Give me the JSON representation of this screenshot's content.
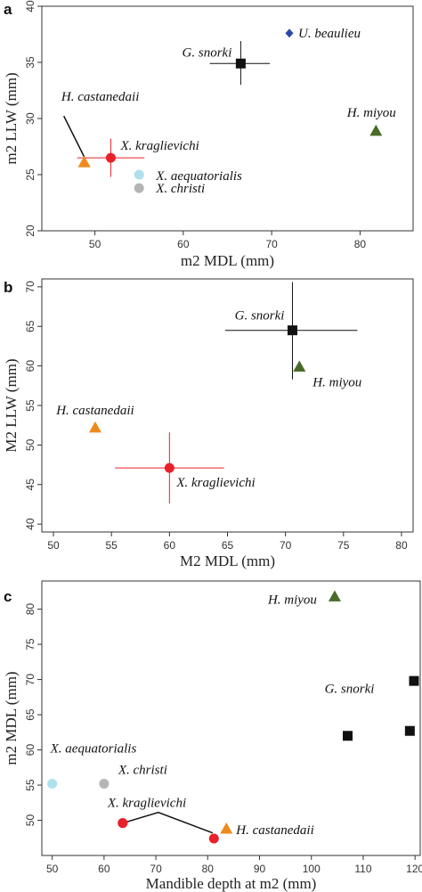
{
  "chart_data": [
    {
      "type": "scatter",
      "panel_label": "a",
      "xlabel": "m2 MDL (mm)",
      "ylabel": "m2 LLW (mm)",
      "xlim": [
        44,
        86
      ],
      "ylim": [
        20,
        40
      ],
      "xticks": [
        50,
        60,
        70,
        80
      ],
      "yticks": [
        20,
        25,
        30,
        35,
        40
      ],
      "points": [
        {
          "label": "U. beaulieu",
          "x": 72.0,
          "y": 37.6,
          "marker": "diamond",
          "color": "#2b47a8"
        },
        {
          "label": "G. snorki",
          "x": 66.5,
          "y": 34.9,
          "marker": "square",
          "color": "#111111",
          "xerr": [
            63.0,
            69.8
          ],
          "yerr": [
            33.0,
            36.9
          ]
        },
        {
          "label": "H. miyou",
          "x": 81.8,
          "y": 28.9,
          "marker": "triangle",
          "color": "#4a6b28"
        },
        {
          "label": "H. castanedaii",
          "x": 48.8,
          "y": 26.1,
          "marker": "triangle",
          "color": "#ee8a1c"
        },
        {
          "label": "X. kraglievichi",
          "x": 51.8,
          "y": 26.5,
          "marker": "circle",
          "color": "#e8202a",
          "xerr": [
            48.0,
            55.6
          ],
          "yerr": [
            24.8,
            28.2
          ]
        },
        {
          "label": "X. aequatorialis",
          "x": 55.0,
          "y": 25.0,
          "marker": "circle",
          "color": "#aee0ee"
        },
        {
          "label": "X. christi",
          "x": 55.0,
          "y": 23.8,
          "marker": "circle",
          "color": "#b5b5b5"
        }
      ]
    },
    {
      "type": "scatter",
      "panel_label": "b",
      "xlabel": "M2 MDL (mm)",
      "ylabel": "M2 LLW (mm)",
      "xlim": [
        49,
        81
      ],
      "ylim": [
        39,
        71
      ],
      "xticks": [
        50,
        55,
        60,
        65,
        70,
        75,
        80
      ],
      "yticks": [
        40,
        45,
        50,
        55,
        60,
        65,
        70
      ],
      "points": [
        {
          "label": "G. snorki",
          "x": 70.6,
          "y": 64.5,
          "marker": "square",
          "color": "#111111",
          "xerr": [
            64.8,
            76.2
          ],
          "yerr": [
            58.3,
            70.6
          ]
        },
        {
          "label": "H. miyou",
          "x": 71.2,
          "y": 59.9,
          "marker": "triangle",
          "color": "#4a6b28"
        },
        {
          "label": "H. castanedaii",
          "x": 53.6,
          "y": 52.2,
          "marker": "triangle",
          "color": "#ee8a1c"
        },
        {
          "label": "X. kraglievichi",
          "x": 60.0,
          "y": 47.1,
          "marker": "circle",
          "color": "#e8202a",
          "xerr": [
            55.3,
            64.7
          ],
          "yerr": [
            42.6,
            51.6
          ]
        }
      ]
    },
    {
      "type": "scatter",
      "panel_label": "c",
      "xlabel": "Mandible depth at m2 (mm)",
      "ylabel": "m2 MDL (mm)",
      "xlim": [
        48,
        121
      ],
      "ylim": [
        45,
        84
      ],
      "xticks": [
        50,
        60,
        70,
        80,
        90,
        100,
        110,
        120
      ],
      "yticks": [
        50,
        55,
        60,
        65,
        70,
        75,
        80
      ],
      "points": [
        {
          "label": "H. miyou",
          "x": 104.5,
          "y": 81.8,
          "marker": "triangle",
          "color": "#4a6b28"
        },
        {
          "label": "G. snorki",
          "x": 107.0,
          "y": 62.0,
          "marker": "square",
          "color": "#111111"
        },
        {
          "label": "",
          "x": 119.0,
          "y": 62.7,
          "marker": "square",
          "color": "#111111"
        },
        {
          "label": "",
          "x": 119.8,
          "y": 69.8,
          "marker": "square",
          "color": "#111111"
        },
        {
          "label": "X. aequatorialis",
          "x": 50.0,
          "y": 55.2,
          "marker": "circle",
          "color": "#aee0ee"
        },
        {
          "label": "X. christi",
          "x": 60.0,
          "y": 55.2,
          "marker": "circle",
          "color": "#b5b5b5"
        },
        {
          "label": "X. kraglievichi",
          "x": 63.6,
          "y": 49.6,
          "marker": "circle",
          "color": "#e8202a"
        },
        {
          "label": "",
          "x": 81.2,
          "y": 47.4,
          "marker": "circle",
          "color": "#e8202a"
        },
        {
          "label": "H. castanedaii",
          "x": 83.6,
          "y": 48.8,
          "marker": "triangle",
          "color": "#ee8a1c"
        }
      ]
    }
  ]
}
